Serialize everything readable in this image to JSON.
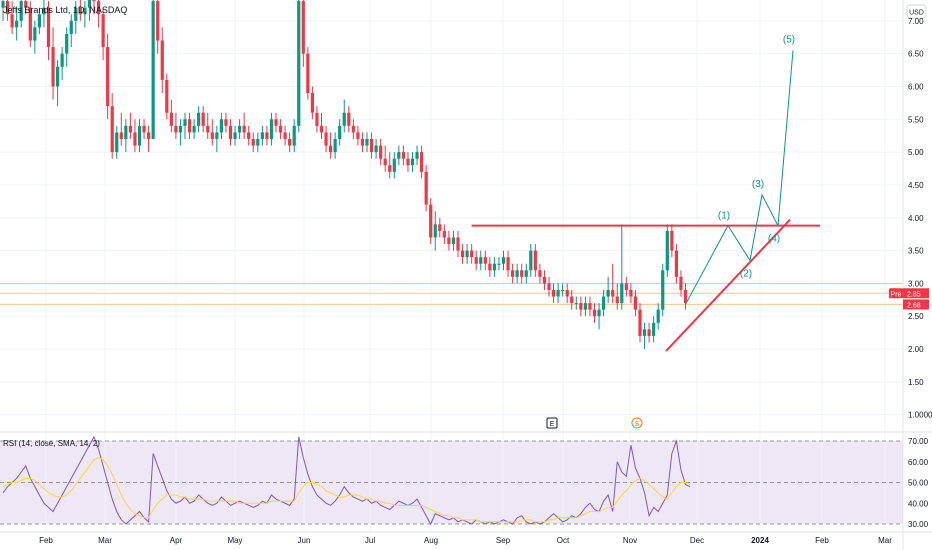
{
  "header": {
    "symbol_title": "Jeffs Brands Ltd, 1D, NASDAQ",
    "currency_label": "USD"
  },
  "chart_data": {
    "type": "candlestick",
    "price_axis": {
      "ticks": [
        "7.00",
        "6.50",
        "6.00",
        "5.50",
        "5.00",
        "4.50",
        "4.00",
        "3.50",
        "3.00",
        "2.50",
        "2.00",
        "1.50",
        "1.0000"
      ],
      "range": [
        0.95,
        7.5
      ]
    },
    "time_axis": {
      "labels": [
        "Feb",
        "Mar",
        "Apr",
        "May",
        "Jun",
        "Jul",
        "Aug",
        "Sep",
        "Oct",
        "Nov",
        "Dec",
        "2024",
        "Feb",
        "Mar"
      ]
    },
    "price_badges": [
      {
        "label": "Pre",
        "value": "2.85",
        "color": "#f23645"
      },
      {
        "label": "",
        "value": "2.68",
        "color": "#f23645"
      }
    ],
    "events": [
      {
        "icon": "earnings-icon",
        "text": "E"
      },
      {
        "icon": "dividend-icon",
        "text": "$"
      }
    ],
    "candles": [
      [
        7.2,
        7.4,
        7.0,
        7.3
      ],
      [
        7.3,
        7.5,
        7.0,
        7.1
      ],
      [
        7.1,
        7.3,
        6.8,
        6.9
      ],
      [
        6.9,
        7.2,
        6.7,
        7.0
      ],
      [
        7.0,
        7.4,
        6.9,
        7.3
      ],
      [
        7.3,
        7.5,
        7.1,
        7.2
      ],
      [
        7.2,
        7.3,
        6.6,
        6.7
      ],
      [
        6.7,
        7.0,
        6.5,
        6.9
      ],
      [
        6.9,
        7.2,
        6.8,
        7.1
      ],
      [
        7.1,
        7.4,
        6.9,
        7.2
      ],
      [
        7.2,
        7.3,
        6.4,
        6.6
      ],
      [
        6.6,
        6.9,
        5.8,
        6.0
      ],
      [
        6.0,
        6.4,
        5.7,
        6.3
      ],
      [
        6.3,
        6.6,
        6.1,
        6.5
      ],
      [
        6.5,
        6.9,
        6.3,
        6.8
      ],
      [
        6.8,
        7.1,
        6.6,
        7.0
      ],
      [
        7.0,
        7.3,
        6.8,
        7.2
      ],
      [
        7.2,
        7.4,
        7.0,
        7.1
      ],
      [
        7.1,
        7.3,
        6.9,
        7.2
      ],
      [
        7.2,
        7.5,
        7.0,
        7.4
      ],
      [
        7.4,
        7.5,
        7.1,
        7.3
      ],
      [
        7.3,
        7.5,
        6.9,
        7.1
      ],
      [
        7.1,
        7.2,
        6.4,
        6.6
      ],
      [
        6.6,
        6.8,
        5.5,
        5.7
      ],
      [
        5.7,
        5.9,
        4.9,
        5.0
      ],
      [
        5.0,
        5.4,
        4.9,
        5.3
      ],
      [
        5.3,
        5.6,
        5.1,
        5.2
      ],
      [
        5.2,
        5.5,
        5.0,
        5.4
      ],
      [
        5.4,
        5.6,
        5.2,
        5.3
      ],
      [
        5.3,
        5.5,
        5.0,
        5.1
      ],
      [
        5.1,
        5.5,
        5.0,
        5.4
      ],
      [
        5.4,
        5.5,
        5.2,
        5.3
      ],
      [
        5.3,
        5.4,
        5.0,
        5.2
      ],
      [
        5.2,
        7.4,
        5.2,
        7.3
      ],
      [
        7.3,
        7.5,
        6.5,
        6.7
      ],
      [
        6.7,
        6.9,
        5.9,
        6.1
      ],
      [
        6.1,
        6.2,
        5.5,
        5.6
      ],
      [
        5.6,
        5.8,
        5.3,
        5.4
      ],
      [
        5.4,
        5.6,
        5.2,
        5.3
      ],
      [
        5.3,
        5.5,
        5.1,
        5.4
      ],
      [
        5.4,
        5.6,
        5.2,
        5.5
      ],
      [
        5.5,
        5.6,
        5.2,
        5.3
      ],
      [
        5.3,
        5.5,
        5.2,
        5.4
      ],
      [
        5.4,
        5.7,
        5.3,
        5.6
      ],
      [
        5.6,
        5.7,
        5.3,
        5.4
      ],
      [
        5.4,
        5.6,
        5.2,
        5.3
      ],
      [
        5.3,
        5.5,
        5.1,
        5.2
      ],
      [
        5.2,
        5.4,
        5.0,
        5.3
      ],
      [
        5.3,
        5.6,
        5.2,
        5.5
      ],
      [
        5.5,
        5.6,
        5.3,
        5.4
      ],
      [
        5.4,
        5.5,
        5.1,
        5.2
      ],
      [
        5.2,
        5.4,
        5.1,
        5.3
      ],
      [
        5.3,
        5.5,
        5.2,
        5.4
      ],
      [
        5.4,
        5.6,
        5.2,
        5.3
      ],
      [
        5.3,
        5.4,
        5.1,
        5.2
      ],
      [
        5.2,
        5.3,
        5.0,
        5.1
      ],
      [
        5.1,
        5.3,
        5.0,
        5.2
      ],
      [
        5.2,
        5.4,
        5.1,
        5.3
      ],
      [
        5.3,
        5.4,
        5.1,
        5.2
      ],
      [
        5.2,
        5.6,
        5.1,
        5.5
      ],
      [
        5.5,
        5.6,
        5.3,
        5.4
      ],
      [
        5.4,
        5.5,
        5.2,
        5.3
      ],
      [
        5.3,
        5.4,
        5.1,
        5.2
      ],
      [
        5.2,
        5.3,
        5.0,
        5.1
      ],
      [
        5.1,
        5.5,
        5.0,
        5.4
      ],
      [
        5.4,
        7.5,
        5.3,
        7.3
      ],
      [
        7.3,
        7.5,
        6.3,
        6.5
      ],
      [
        6.5,
        6.6,
        5.8,
        5.9
      ],
      [
        5.9,
        6.0,
        5.5,
        5.6
      ],
      [
        5.6,
        5.7,
        5.3,
        5.4
      ],
      [
        5.4,
        5.6,
        5.2,
        5.3
      ],
      [
        5.3,
        5.4,
        5.0,
        5.1
      ],
      [
        5.1,
        5.3,
        4.9,
        5.0
      ],
      [
        5.0,
        5.3,
        4.9,
        5.2
      ],
      [
        5.2,
        5.5,
        5.1,
        5.4
      ],
      [
        5.4,
        5.8,
        5.3,
        5.6
      ],
      [
        5.6,
        5.7,
        5.3,
        5.4
      ],
      [
        5.4,
        5.5,
        5.2,
        5.3
      ],
      [
        5.3,
        5.4,
        5.1,
        5.2
      ],
      [
        5.2,
        5.3,
        5.0,
        5.1
      ],
      [
        5.1,
        5.3,
        5.0,
        5.2
      ],
      [
        5.2,
        5.3,
        4.9,
        5.0
      ],
      [
        5.0,
        5.2,
        4.9,
        5.1
      ],
      [
        5.1,
        5.2,
        4.8,
        4.9
      ],
      [
        4.9,
        5.1,
        4.7,
        4.8
      ],
      [
        4.8,
        5.0,
        4.6,
        4.7
      ],
      [
        4.7,
        5.0,
        4.6,
        4.9
      ],
      [
        4.9,
        5.1,
        4.8,
        5.0
      ],
      [
        5.0,
        5.1,
        4.8,
        4.9
      ],
      [
        4.9,
        5.0,
        4.7,
        4.8
      ],
      [
        4.8,
        5.0,
        4.7,
        4.9
      ],
      [
        4.9,
        5.1,
        4.8,
        5.0
      ],
      [
        5.0,
        5.1,
        4.6,
        4.7
      ],
      [
        4.7,
        4.8,
        4.1,
        4.2
      ],
      [
        4.2,
        4.3,
        3.6,
        3.7
      ],
      [
        3.7,
        4.1,
        3.5,
        3.9
      ],
      [
        3.9,
        4.0,
        3.7,
        3.8
      ],
      [
        3.8,
        3.9,
        3.6,
        3.7
      ],
      [
        3.7,
        3.8,
        3.5,
        3.6
      ],
      [
        3.6,
        3.8,
        3.5,
        3.7
      ],
      [
        3.7,
        3.8,
        3.4,
        3.5
      ],
      [
        3.5,
        3.6,
        3.3,
        3.4
      ],
      [
        3.4,
        3.6,
        3.3,
        3.5
      ],
      [
        3.5,
        3.6,
        3.3,
        3.4
      ],
      [
        3.4,
        3.5,
        3.2,
        3.3
      ],
      [
        3.3,
        3.5,
        3.2,
        3.4
      ],
      [
        3.4,
        3.5,
        3.2,
        3.3
      ],
      [
        3.3,
        3.4,
        3.1,
        3.2
      ],
      [
        3.2,
        3.4,
        3.1,
        3.3
      ],
      [
        3.3,
        3.4,
        3.2,
        3.3
      ],
      [
        3.3,
        3.5,
        3.2,
        3.4
      ],
      [
        3.4,
        3.5,
        3.1,
        3.2
      ],
      [
        3.2,
        3.3,
        3.0,
        3.1
      ],
      [
        3.1,
        3.3,
        3.0,
        3.2
      ],
      [
        3.2,
        3.3,
        3.0,
        3.1
      ],
      [
        3.1,
        3.3,
        3.0,
        3.2
      ],
      [
        3.2,
        3.6,
        3.1,
        3.5
      ],
      [
        3.5,
        3.6,
        3.1,
        3.2
      ],
      [
        3.2,
        3.3,
        3.0,
        3.1
      ],
      [
        3.1,
        3.2,
        2.9,
        3.0
      ],
      [
        3.0,
        3.1,
        2.8,
        2.9
      ],
      [
        2.9,
        3.0,
        2.7,
        2.8
      ],
      [
        2.8,
        3.0,
        2.7,
        2.9
      ],
      [
        2.9,
        3.0,
        2.8,
        2.9
      ],
      [
        2.9,
        3.0,
        2.7,
        2.8
      ],
      [
        2.8,
        2.9,
        2.6,
        2.7
      ],
      [
        2.7,
        2.8,
        2.6,
        2.7
      ],
      [
        2.7,
        2.8,
        2.5,
        2.6
      ],
      [
        2.6,
        2.8,
        2.5,
        2.7
      ],
      [
        2.7,
        2.8,
        2.5,
        2.6
      ],
      [
        2.6,
        2.7,
        2.4,
        2.5
      ],
      [
        2.5,
        2.7,
        2.3,
        2.6
      ],
      [
        2.6,
        2.9,
        2.5,
        2.8
      ],
      [
        2.8,
        3.1,
        2.7,
        2.9
      ],
      [
        2.9,
        3.3,
        2.7,
        2.8
      ],
      [
        2.8,
        3.0,
        2.6,
        2.7
      ],
      [
        2.7,
        3.9,
        2.6,
        3.0
      ],
      [
        3.0,
        3.1,
        2.8,
        2.9
      ],
      [
        2.9,
        3.0,
        2.7,
        2.8
      ],
      [
        2.8,
        2.9,
        2.5,
        2.6
      ],
      [
        2.6,
        2.7,
        2.1,
        2.2
      ],
      [
        2.2,
        2.4,
        2.0,
        2.3
      ],
      [
        2.3,
        2.4,
        2.1,
        2.2
      ],
      [
        2.2,
        2.5,
        2.1,
        2.4
      ],
      [
        2.4,
        2.7,
        2.3,
        2.6
      ],
      [
        2.6,
        3.3,
        2.5,
        3.2
      ],
      [
        3.2,
        3.9,
        3.1,
        3.8
      ],
      [
        3.8,
        3.9,
        3.4,
        3.5
      ],
      [
        3.5,
        3.6,
        3.0,
        3.1
      ],
      [
        3.1,
        3.2,
        2.8,
        2.9
      ],
      [
        2.9,
        3.0,
        2.6,
        2.7
      ]
    ],
    "resistance_level": 3.88,
    "support_trendline": [
      [
        1.97,
        125
      ],
      [
        3.97,
        150
      ]
    ],
    "elliott_waves": [
      {
        "label": "(1)",
        "price": 3.88
      },
      {
        "label": "(2)",
        "price": 3.35
      },
      {
        "label": "(3)",
        "price": 4.35
      },
      {
        "label": "(4)",
        "price": 3.88
      },
      {
        "label": "(5)",
        "price": 6.55
      }
    ],
    "rsi": {
      "title": "RSI (14, close, SMA, 14, 2)",
      "ticks": [
        "70.00",
        "60.00",
        "50.00",
        "40.00",
        "30.00"
      ],
      "range": [
        28,
        73
      ],
      "levels": [
        70,
        50,
        30
      ],
      "values": [
        45,
        48,
        50,
        52,
        55,
        58,
        52,
        48,
        44,
        40,
        38,
        36,
        40,
        44,
        48,
        52,
        56,
        60,
        64,
        68,
        72,
        66,
        58,
        50,
        42,
        36,
        32,
        30,
        32,
        34,
        36,
        33,
        31,
        64,
        58,
        52,
        46,
        42,
        40,
        41,
        43,
        40,
        41,
        44,
        42,
        40,
        39,
        40,
        43,
        41,
        39,
        40,
        41,
        40,
        39,
        38,
        39,
        41,
        40,
        44,
        42,
        41,
        40,
        39,
        42,
        72,
        62,
        54,
        48,
        44,
        42,
        40,
        39,
        41,
        44,
        48,
        45,
        43,
        42,
        41,
        42,
        40,
        41,
        39,
        38,
        37,
        39,
        41,
        40,
        39,
        40,
        42,
        38,
        34,
        30,
        35,
        34,
        33,
        32,
        33,
        31,
        32,
        31,
        30,
        32,
        31,
        30,
        31,
        30,
        31,
        32,
        31,
        30,
        33,
        34,
        31,
        30,
        31,
        30,
        31,
        33,
        35,
        33,
        31,
        32,
        34,
        33,
        35,
        38,
        40,
        37,
        36,
        41,
        44,
        36,
        60,
        55,
        53,
        68,
        57,
        52,
        45,
        34,
        38,
        36,
        40,
        44,
        64,
        70,
        56,
        49,
        48
      ],
      "sma_values": [
        48,
        49,
        50,
        50,
        51,
        52,
        52,
        51,
        49,
        47,
        45,
        44,
        43,
        43,
        44,
        46,
        49,
        52,
        55,
        58,
        61,
        62,
        61,
        58,
        54,
        49,
        44,
        40,
        37,
        35,
        34,
        33,
        33,
        37,
        40,
        42,
        44,
        44,
        44,
        43,
        43,
        42,
        42,
        42,
        42,
        41,
        41,
        41,
        41,
        41,
        41,
        41,
        40,
        40,
        40,
        40,
        40,
        40,
        40,
        41,
        41,
        41,
        41,
        41,
        41,
        45,
        48,
        50,
        50,
        49,
        48,
        46,
        45,
        44,
        43,
        43,
        44,
        44,
        44,
        43,
        42,
        42,
        41,
        41,
        40,
        40,
        39,
        39,
        39,
        39,
        39,
        39,
        39,
        38,
        37,
        36,
        35,
        34,
        34,
        33,
        33,
        32,
        32,
        32,
        32,
        31,
        31,
        31,
        31,
        31,
        31,
        31,
        31,
        31,
        32,
        32,
        32,
        31,
        31,
        31,
        32,
        32,
        33,
        33,
        33,
        33,
        33,
        34,
        35,
        36,
        36,
        36,
        37,
        38,
        38,
        41,
        44,
        46,
        49,
        51,
        52,
        51,
        49,
        47,
        45,
        43,
        42,
        45,
        48,
        50,
        50,
        49
      ]
    }
  }
}
